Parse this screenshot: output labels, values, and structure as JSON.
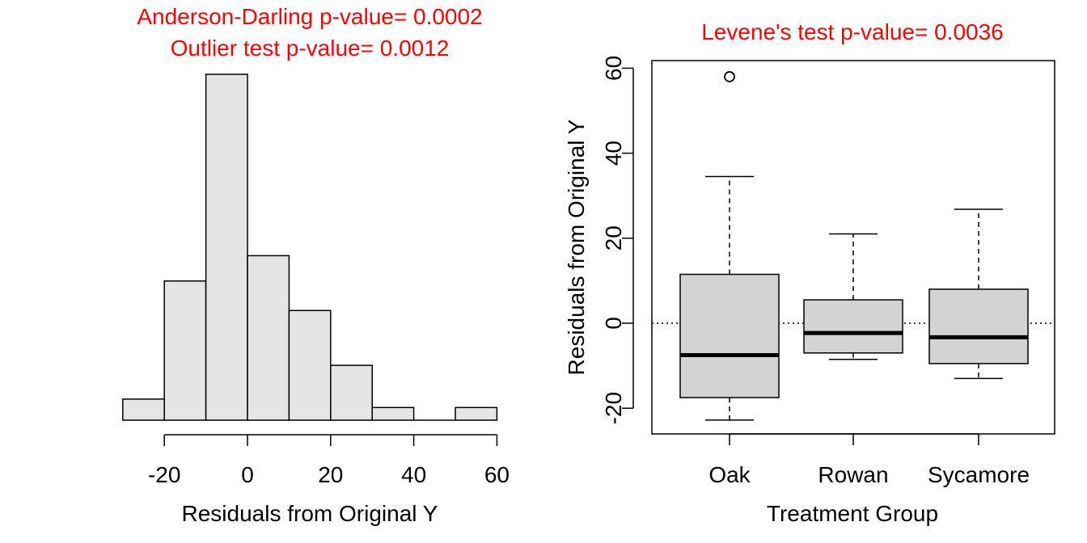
{
  "chart_data": [
    {
      "type": "bar",
      "title_lines": [
        "Anderson-Darling p-value= 0.0002",
        "Outlier test p-value= 0.0012"
      ],
      "xlabel": "Residuals from Original Y",
      "ylabel": "",
      "bins": [
        {
          "x0": -30,
          "x1": -20,
          "count": 5
        },
        {
          "x0": -20,
          "x1": -10,
          "count": 33
        },
        {
          "x0": -10,
          "x1": 0,
          "count": 82
        },
        {
          "x0": 0,
          "x1": 10,
          "count": 39
        },
        {
          "x0": 10,
          "x1": 20,
          "count": 26
        },
        {
          "x0": 20,
          "x1": 30,
          "count": 13
        },
        {
          "x0": 30,
          "x1": 40,
          "count": 3
        },
        {
          "x0": 40,
          "x1": 50,
          "count": 0
        },
        {
          "x0": 50,
          "x1": 60,
          "count": 3
        }
      ],
      "xlim": [
        -30,
        60
      ],
      "x_ticks": [
        -20,
        0,
        20,
        40,
        60
      ],
      "y_axis_shown": false,
      "bar_color": "#e5e5e5",
      "title_color": "#ff0000"
    },
    {
      "type": "box",
      "title": "Levene's test p-value= 0.0036",
      "xlabel": "Treatment Group",
      "ylabel": "Residuals from Original Y",
      "ylim": [
        -26,
        62
      ],
      "y_ticks": [
        -20,
        0,
        20,
        40,
        60
      ],
      "reference_line": 0,
      "groups": [
        {
          "name": "Oak",
          "whisker_low": -22.8,
          "q1": -17.5,
          "median": -7.5,
          "q3": 11.5,
          "whisker_high": 34.5,
          "outliers": [
            58
          ]
        },
        {
          "name": "Rowan",
          "whisker_low": -8.5,
          "q1": -7.0,
          "median": -2.3,
          "q3": 5.5,
          "whisker_high": 21.0,
          "outliers": []
        },
        {
          "name": "Sycamore",
          "whisker_low": -13.0,
          "q1": -9.5,
          "median": -3.3,
          "q3": 8.0,
          "whisker_high": 26.8,
          "outliers": []
        }
      ],
      "box_color": "#d3d3d3",
      "title_color": "#ff0000"
    }
  ]
}
